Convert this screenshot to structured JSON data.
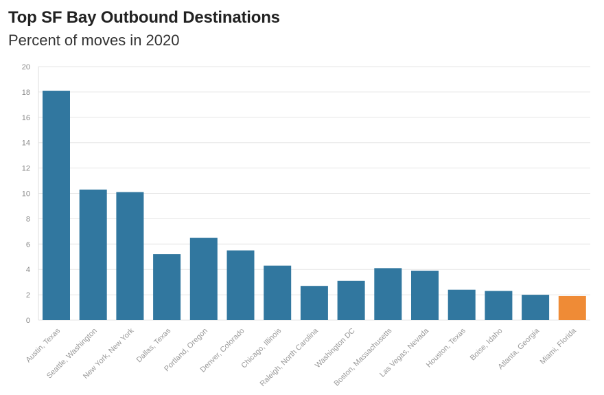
{
  "header": {
    "title": "Top SF Bay Outbound Destinations",
    "subtitle": "Percent of moves in 2020"
  },
  "colors": {
    "bar": "#31779f",
    "highlight": "#ef8b36",
    "grid": "#e6e6e6",
    "axis": "#dddddd"
  },
  "chart_data": {
    "type": "bar",
    "title": "Top SF Bay Outbound Destinations",
    "subtitle": "Percent of moves in 2020",
    "categories": [
      "Austin, Texas",
      "Seattle, Washington",
      "New York, New York",
      "Dallas, Texas",
      "Portland, Oregon",
      "Denver, Colorado",
      "Chicago, Illinois",
      "Raleigh, North Carolina",
      "Washington DC",
      "Boston, Massachusetts",
      "Las Vegas, Nevada",
      "Houston, Texas",
      "Boise, Idaho",
      "Atlanta, Georgia",
      "Miami, Florida"
    ],
    "values": [
      18.1,
      10.3,
      10.1,
      5.2,
      6.5,
      5.5,
      4.3,
      2.7,
      3.1,
      4.1,
      3.9,
      2.4,
      2.3,
      2.0,
      1.9
    ],
    "highlighted": [
      "Miami, Florida"
    ],
    "yticks": [
      0,
      2,
      4,
      6,
      8,
      10,
      12,
      14,
      16,
      18,
      20
    ],
    "ylim": [
      0,
      20
    ],
    "grid": true,
    "xlabel": "",
    "ylabel": ""
  }
}
